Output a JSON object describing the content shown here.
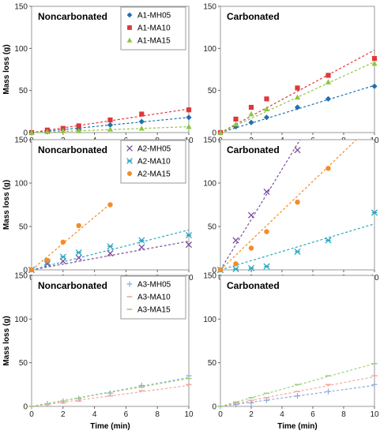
{
  "figure": {
    "ylabel": "Mass loss (g)",
    "xlabel": "Time (min)"
  },
  "chart_data": [
    {
      "type": "scatter",
      "row": 0,
      "col": 0,
      "title": "Noncarbonated",
      "xlim": [
        0,
        10
      ],
      "ylim": [
        0,
        150
      ],
      "xticks": [
        "0",
        "2",
        "4",
        "6",
        "8",
        "10"
      ],
      "yticks": [
        "0",
        "50",
        "100",
        "150"
      ],
      "legend": "top-right",
      "series": [
        {
          "name": "A1-MH05",
          "marker": "diamond",
          "color": "#1f6fb4",
          "x": [
            0,
            1,
            2,
            3,
            5,
            7,
            10
          ],
          "y": [
            0,
            1,
            3,
            4,
            9,
            13,
            18
          ],
          "fit": [
            0,
            1.8
          ]
        },
        {
          "name": "A1-MA10",
          "marker": "square",
          "color": "#e0373a",
          "x": [
            0,
            1,
            2,
            3,
            5,
            7,
            10
          ],
          "y": [
            0,
            3,
            5,
            8,
            15,
            22,
            27
          ],
          "fit": [
            0,
            2.8
          ]
        },
        {
          "name": "A1-MA15",
          "marker": "triangle",
          "color": "#8dc63f",
          "x": [
            0,
            1,
            2,
            3,
            5,
            7,
            10
          ],
          "y": [
            0,
            1,
            2,
            2,
            4,
            5,
            7
          ],
          "fit": [
            0,
            0.7
          ]
        }
      ]
    },
    {
      "type": "scatter",
      "row": 0,
      "col": 1,
      "title": "Carbonated",
      "xlim": [
        0,
        10
      ],
      "ylim": [
        0,
        150
      ],
      "xticks": [
        "0",
        "2",
        "4",
        "6",
        "8",
        "10"
      ],
      "yticks": [
        "0",
        "50",
        "100",
        "150"
      ],
      "series": [
        {
          "name": "A1-MH05",
          "marker": "diamond",
          "color": "#1f6fb4",
          "x": [
            0,
            1,
            2,
            3,
            5,
            7,
            10
          ],
          "y": [
            0,
            7,
            12,
            18,
            30,
            40,
            55
          ],
          "fit": [
            0,
            5.6
          ]
        },
        {
          "name": "A1-MA10",
          "marker": "square",
          "color": "#e0373a",
          "x": [
            0,
            1,
            2,
            3,
            5,
            7,
            10
          ],
          "y": [
            0,
            16,
            30,
            40,
            53,
            68,
            88
          ],
          "fit": [
            0,
            9.8
          ]
        },
        {
          "name": "A1-MA15",
          "marker": "triangle",
          "color": "#8dc63f",
          "x": [
            0,
            1,
            2,
            3,
            5,
            7,
            10
          ],
          "y": [
            0,
            10,
            22,
            28,
            42,
            60,
            82
          ],
          "fit": [
            0,
            8.4
          ]
        }
      ]
    },
    {
      "type": "scatter",
      "row": 1,
      "col": 0,
      "title": "Noncarbonated",
      "xlim": [
        0,
        10
      ],
      "ylim": [
        0,
        150
      ],
      "xticks": [
        "0",
        "2",
        "4",
        "6",
        "8",
        "10"
      ],
      "yticks": [
        "0",
        "50",
        "100",
        "150"
      ],
      "legend": "top-right",
      "series": [
        {
          "name": "A2-MH05",
          "marker": "x",
          "color": "#7b4c9e",
          "x": [
            0,
            1,
            2,
            3,
            5,
            7,
            10
          ],
          "y": [
            0,
            7,
            10,
            14,
            19,
            26,
            29
          ],
          "fit": [
            0,
            3.3
          ]
        },
        {
          "name": "A2-MA10",
          "marker": "star",
          "color": "#2aa6c2",
          "x": [
            0,
            1,
            2,
            3,
            5,
            7,
            10
          ],
          "y": [
            0,
            9,
            15,
            20,
            27,
            34,
            40
          ],
          "fit": [
            0,
            4.6
          ]
        },
        {
          "name": "A2-MA15",
          "marker": "circle",
          "color": "#f28c28",
          "x": [
            0,
            1,
            2,
            3,
            5
          ],
          "y": [
            0,
            11,
            32,
            51,
            75
          ],
          "fit": [
            0,
            15.2
          ],
          "fit_xmax": 5
        }
      ]
    },
    {
      "type": "scatter",
      "row": 1,
      "col": 1,
      "title": "Carbonated",
      "xlim": [
        0,
        10
      ],
      "ylim": [
        0,
        150
      ],
      "xticks": [
        "0",
        "2",
        "4",
        "6",
        "8",
        "10"
      ],
      "yticks": [
        "0",
        "50",
        "100",
        "150"
      ],
      "series": [
        {
          "name": "A2-MH05",
          "marker": "x",
          "color": "#7b4c9e",
          "x": [
            0,
            1,
            2,
            3,
            5
          ],
          "y": [
            0,
            34,
            63,
            90,
            138
          ],
          "fit": [
            0,
            29
          ]
        },
        {
          "name": "A2-MA10",
          "marker": "star",
          "color": "#2aa6c2",
          "x": [
            0,
            1,
            2,
            3,
            5,
            7,
            10
          ],
          "y": [
            0,
            1,
            2,
            4,
            21,
            34,
            66
          ],
          "fit": [
            0,
            5.3
          ]
        },
        {
          "name": "A2-MA15",
          "marker": "circle",
          "color": "#f28c28",
          "x": [
            0,
            1,
            2,
            3,
            5,
            7
          ],
          "y": [
            0,
            7,
            25,
            44,
            78,
            117
          ],
          "fit": [
            0,
            17
          ]
        }
      ]
    },
    {
      "type": "scatter",
      "row": 2,
      "col": 0,
      "title": "Noncarbonated",
      "xlim": [
        0,
        10
      ],
      "ylim": [
        0,
        150
      ],
      "xticks": [
        "0",
        "2",
        "4",
        "6",
        "8",
        "10"
      ],
      "yticks": [
        "0",
        "50",
        "100",
        "150"
      ],
      "legend": "top-right",
      "series": [
        {
          "name": "A3-MH05",
          "marker": "plus",
          "color": "#8fa9d8",
          "x": [
            0,
            1,
            2,
            3,
            5,
            7,
            10
          ],
          "y": [
            0,
            3,
            6,
            9,
            15,
            24,
            35
          ],
          "fit": [
            0,
            3.3
          ]
        },
        {
          "name": "A3-MA10",
          "marker": "dash",
          "color": "#f4a6a0",
          "x": [
            0,
            1,
            2,
            3,
            5,
            7,
            10
          ],
          "y": [
            0,
            2,
            4,
            6,
            12,
            18,
            25
          ],
          "fit": [
            0,
            2.4
          ]
        },
        {
          "name": "A3-MA15",
          "marker": "dash",
          "color": "#9fd07a",
          "x": [
            0,
            1,
            2,
            3,
            5,
            7,
            10
          ],
          "y": [
            0,
            3,
            6,
            9,
            15,
            22,
            32
          ],
          "fit": [
            0,
            3.2
          ]
        }
      ]
    },
    {
      "type": "scatter",
      "row": 2,
      "col": 1,
      "title": "Carbonated",
      "xlim": [
        0,
        10
      ],
      "ylim": [
        0,
        150
      ],
      "xticks": [
        "0",
        "2",
        "4",
        "6",
        "8",
        "10"
      ],
      "yticks": [
        "0",
        "50",
        "100",
        "150"
      ],
      "series": [
        {
          "name": "A3-MH05",
          "marker": "plus",
          "color": "#8fa9d8",
          "x": [
            0,
            1,
            2,
            3,
            5,
            7,
            10
          ],
          "y": [
            0,
            2,
            4,
            7,
            12,
            17,
            25
          ],
          "fit": [
            0,
            2.4
          ]
        },
        {
          "name": "A3-MA10",
          "marker": "dash",
          "color": "#f4a6a0",
          "x": [
            0,
            1,
            2,
            3,
            5,
            7,
            10
          ],
          "y": [
            0,
            4,
            7,
            10,
            17,
            25,
            35
          ],
          "fit": [
            0,
            3.4
          ]
        },
        {
          "name": "A3-MA15",
          "marker": "dash",
          "color": "#9fd07a",
          "x": [
            0,
            1,
            2,
            3,
            5,
            7,
            10
          ],
          "y": [
            0,
            5,
            10,
            15,
            25,
            35,
            49
          ],
          "fit": [
            0,
            4.9
          ]
        }
      ]
    }
  ]
}
